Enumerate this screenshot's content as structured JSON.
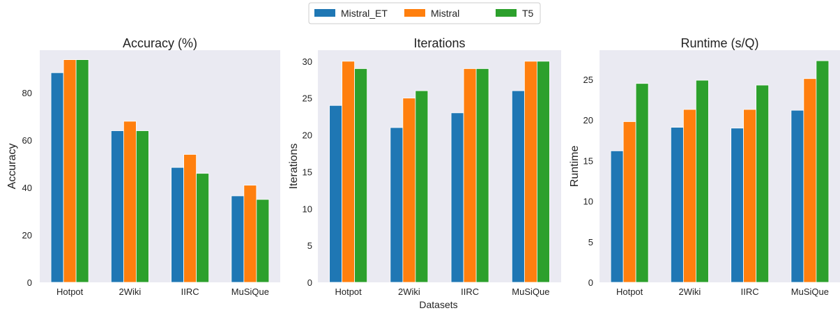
{
  "legend": {
    "placement": "top-center",
    "entries": [
      {
        "label": "Mistral_ET",
        "color": "#1f77b4"
      },
      {
        "label": "Mistral",
        "color": "#ff7f0e"
      },
      {
        "label": "T5",
        "color": "#2ca02c"
      }
    ]
  },
  "shared_xlabel": "Datasets",
  "chart_data": [
    {
      "type": "bar",
      "title": "Accuracy (%)",
      "xlabel": "",
      "ylabel": "Accuracy",
      "categories": [
        "Hotpot",
        "2Wiki",
        "IIRC",
        "MuSiQue"
      ],
      "ylim": [
        0,
        98
      ],
      "yticks": [
        0,
        20,
        40,
        60,
        80
      ],
      "grid": false,
      "series": [
        {
          "name": "Mistral_ET",
          "color": "#1f77b4",
          "values": [
            88.5,
            64,
            48.5,
            36.5
          ]
        },
        {
          "name": "Mistral",
          "color": "#ff7f0e",
          "values": [
            94,
            68,
            54,
            41
          ]
        },
        {
          "name": "T5",
          "color": "#2ca02c",
          "values": [
            94,
            64,
            46,
            35
          ]
        }
      ]
    },
    {
      "type": "bar",
      "title": "Iterations",
      "xlabel": "Datasets",
      "ylabel": "Iterations",
      "categories": [
        "Hotpot",
        "2Wiki",
        "IIRC",
        "MuSiQue"
      ],
      "ylim": [
        0,
        31.5
      ],
      "yticks": [
        0,
        5,
        10,
        15,
        20,
        25,
        30
      ],
      "grid": false,
      "series": [
        {
          "name": "Mistral_ET",
          "color": "#1f77b4",
          "values": [
            24,
            21,
            23,
            26
          ]
        },
        {
          "name": "Mistral",
          "color": "#ff7f0e",
          "values": [
            30,
            25,
            29,
            30
          ]
        },
        {
          "name": "T5",
          "color": "#2ca02c",
          "values": [
            29,
            26,
            29,
            30
          ]
        }
      ]
    },
    {
      "type": "bar",
      "title": "Runtime (s/Q)",
      "xlabel": "",
      "ylabel": "Runtime",
      "categories": [
        "Hotpot",
        "2Wiki",
        "IIRC",
        "MuSiQue"
      ],
      "ylim": [
        0,
        28.6
      ],
      "yticks": [
        0,
        5,
        10,
        15,
        20,
        25
      ],
      "grid": false,
      "series": [
        {
          "name": "Mistral_ET",
          "color": "#1f77b4",
          "values": [
            16.2,
            19.1,
            19.0,
            21.2
          ]
        },
        {
          "name": "Mistral",
          "color": "#ff7f0e",
          "values": [
            19.8,
            21.3,
            21.3,
            25.1
          ]
        },
        {
          "name": "T5",
          "color": "#2ca02c",
          "values": [
            24.5,
            24.9,
            24.3,
            27.3
          ]
        }
      ]
    }
  ]
}
